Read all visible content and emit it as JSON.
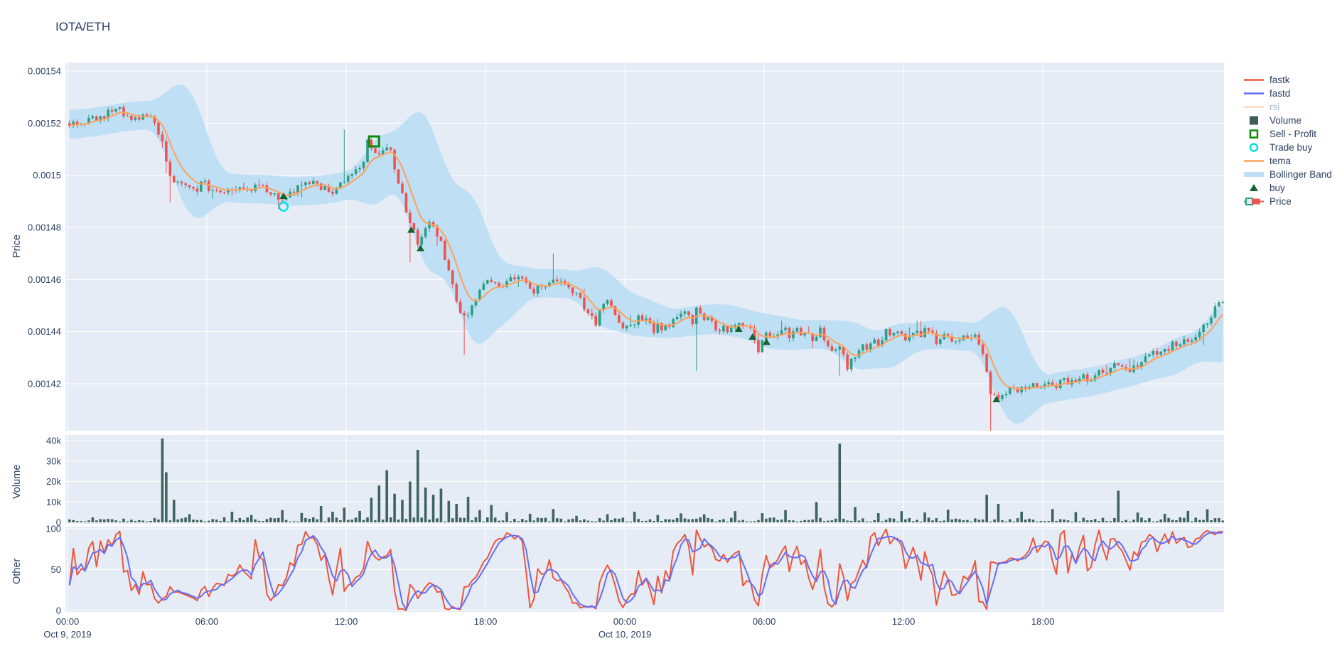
{
  "title": "IOTA/ETH",
  "colors": {
    "background": "#ffffff",
    "plot_bg": "#E5ECF6",
    "grid": "#ffffff",
    "text": "#2A3F5F",
    "candle_up": "#2D9E83",
    "candle_down": "#EF5350",
    "tema": "#FFA15A",
    "fastk": "#EF553B",
    "fastd": "#636EFA",
    "rsi": "#FFA15A",
    "bollinger": "#BEDFF4",
    "volume_bar": "#406362",
    "buy_marker": "#14652D",
    "trade_buy": "#00E0E6",
    "sell_profit": "#0E8A0E",
    "legend_faded_text": "#A9B6C9"
  },
  "axes": {
    "price": {
      "title": "Price",
      "ticks": [
        {
          "v": 0.00154,
          "label": "0.00154"
        },
        {
          "v": 0.00152,
          "label": "0.00152"
        },
        {
          "v": 0.0015,
          "label": "0.0015"
        },
        {
          "v": 0.00148,
          "label": "0.00148"
        },
        {
          "v": 0.00146,
          "label": "0.00146"
        },
        {
          "v": 0.00144,
          "label": "0.00144"
        },
        {
          "v": 0.00142,
          "label": "0.00142"
        }
      ]
    },
    "volume": {
      "title": "Volume",
      "ticks": [
        {
          "v": 40000,
          "label": "40k"
        },
        {
          "v": 30000,
          "label": "30k"
        },
        {
          "v": 20000,
          "label": "20k"
        },
        {
          "v": 10000,
          "label": "10k"
        },
        {
          "v": 0,
          "label": "0"
        }
      ]
    },
    "other": {
      "title": "Other",
      "ticks": [
        {
          "v": 100,
          "label": "100"
        },
        {
          "v": 50,
          "label": "50"
        },
        {
          "v": 0,
          "label": "0"
        }
      ]
    },
    "time": {
      "ticks": [
        {
          "t": 0,
          "label": "00:00",
          "sub": "Oct 9, 2019"
        },
        {
          "t": 6,
          "label": "06:00"
        },
        {
          "t": 12,
          "label": "12:00"
        },
        {
          "t": 18,
          "label": "18:00"
        },
        {
          "t": 24,
          "label": "00:00",
          "sub": "Oct 10, 2019"
        },
        {
          "t": 30,
          "label": "06:00"
        },
        {
          "t": 36,
          "label": "12:00"
        },
        {
          "t": 42,
          "label": "18:00"
        }
      ]
    }
  },
  "legend": {
    "items": [
      {
        "id": "fastk",
        "label": "fastk",
        "swatch": "line",
        "color": "#EF553B",
        "faded": false
      },
      {
        "id": "fastd",
        "label": "fastd",
        "swatch": "line",
        "color": "#636EFA",
        "faded": false
      },
      {
        "id": "rsi",
        "label": "rsi",
        "swatch": "line",
        "color": "#FFA15A",
        "faded": true
      },
      {
        "id": "volume",
        "label": "Volume",
        "swatch": "square-filled",
        "color": "#3E5C5C",
        "faded": false
      },
      {
        "id": "sell-profit",
        "label": "Sell - Profit",
        "swatch": "square-open",
        "color": "#0E8A0E",
        "faded": false
      },
      {
        "id": "trade-buy",
        "label": "Trade buy",
        "swatch": "circle-open",
        "color": "#00E0E6",
        "faded": false
      },
      {
        "id": "tema",
        "label": "tema",
        "swatch": "line",
        "color": "#FFA15A",
        "faded": false
      },
      {
        "id": "bollinger",
        "label": "Bollinger Band",
        "swatch": "band",
        "color": "#BEDFF4",
        "faded": false
      },
      {
        "id": "buy",
        "label": "buy",
        "swatch": "triangle",
        "color": "#14652D",
        "faded": false
      },
      {
        "id": "price",
        "label": "Price",
        "swatch": "candle",
        "color": "#2D9E83",
        "color2": "#EF5350",
        "faded": false
      }
    ]
  },
  "chart_data": {
    "type": "candlestick",
    "title": "IOTA/ETH",
    "x_axis": {
      "unit": "hours_from_Oct9_2019_00:00",
      "range": [
        0,
        49.8
      ],
      "tick_interval_hours": 6,
      "grid": true
    },
    "price_axis": {
      "range": [
        0.001402,
        0.0015433
      ],
      "grid": true
    },
    "volume_axis": {
      "range": [
        0,
        43000
      ],
      "grid": true
    },
    "other_axis": {
      "range": [
        0,
        105
      ],
      "grid": true
    },
    "legend_position": "right",
    "series": [
      {
        "name": "Price",
        "type": "candlestick",
        "subplot": "price"
      },
      {
        "name": "tema",
        "type": "line",
        "subplot": "price"
      },
      {
        "name": "Bollinger Band",
        "type": "band",
        "subplot": "price"
      },
      {
        "name": "buy",
        "type": "markers-triangle",
        "subplot": "price"
      },
      {
        "name": "Trade buy",
        "type": "markers-circle-open",
        "subplot": "price"
      },
      {
        "name": "Sell - Profit",
        "type": "markers-square-open",
        "subplot": "price"
      },
      {
        "name": "Volume",
        "type": "bar",
        "subplot": "volume"
      },
      {
        "name": "fastk",
        "type": "line",
        "subplot": "other"
      },
      {
        "name": "fastd",
        "type": "line",
        "subplot": "other"
      },
      {
        "name": "rsi",
        "type": "line",
        "subplot": "other",
        "visible": false
      }
    ],
    "price_keyframes": [
      [
        0,
        0.00152
      ],
      [
        0.8,
        0.001521
      ],
      [
        1.6,
        0.001524
      ],
      [
        2.3,
        0.001526
      ],
      [
        2.9,
        0.001521
      ],
      [
        3.4,
        0.001522
      ],
      [
        3.9,
        0.001521
      ],
      [
        4.15,
        0.00151
      ],
      [
        4.6,
        0.001497
      ],
      [
        5.2,
        0.001495
      ],
      [
        6.0,
        0.001496
      ],
      [
        6.6,
        0.001492
      ],
      [
        7.3,
        0.001495
      ],
      [
        8.0,
        0.001496
      ],
      [
        8.7,
        0.001494
      ],
      [
        9.3,
        0.001489
      ],
      [
        9.9,
        0.001494
      ],
      [
        10.6,
        0.001499
      ],
      [
        11.3,
        0.001493
      ],
      [
        11.9,
        0.001497
      ],
      [
        12.5,
        0.001502
      ],
      [
        13.2,
        0.001512
      ],
      [
        13.6,
        0.001507
      ],
      [
        13.9,
        0.001511
      ],
      [
        14.3,
        0.0015
      ],
      [
        14.8,
        0.001482
      ],
      [
        15.2,
        0.001473
      ],
      [
        15.7,
        0.001482
      ],
      [
        16.1,
        0.001477
      ],
      [
        16.6,
        0.00146
      ],
      [
        17.1,
        0.001444
      ],
      [
        17.6,
        0.001452
      ],
      [
        18.2,
        0.00146
      ],
      [
        18.9,
        0.001457
      ],
      [
        19.5,
        0.001462
      ],
      [
        20.2,
        0.001455
      ],
      [
        20.9,
        0.001461
      ],
      [
        21.5,
        0.00146
      ],
      [
        22.1,
        0.001452
      ],
      [
        22.7,
        0.001447
      ],
      [
        23.3,
        0.001451
      ],
      [
        24.0,
        0.001443
      ],
      [
        24.9,
        0.001445
      ],
      [
        25.7,
        0.001442
      ],
      [
        26.5,
        0.001446
      ],
      [
        27.3,
        0.001448
      ],
      [
        27.9,
        0.001442
      ],
      [
        28.5,
        0.00144
      ],
      [
        29.2,
        0.001443
      ],
      [
        29.8,
        0.001437
      ],
      [
        30.5,
        0.001439
      ],
      [
        31.2,
        0.001441
      ],
      [
        31.9,
        0.001438
      ],
      [
        32.6,
        0.001437
      ],
      [
        33.2,
        0.001432
      ],
      [
        33.8,
        0.001431
      ],
      [
        34.4,
        0.001434
      ],
      [
        35.1,
        0.001438
      ],
      [
        35.7,
        0.00144
      ],
      [
        36.3,
        0.001437
      ],
      [
        37.0,
        0.00144
      ],
      [
        37.6,
        0.001438
      ],
      [
        38.3,
        0.001437
      ],
      [
        38.9,
        0.001439
      ],
      [
        39.4,
        0.001436
      ],
      [
        39.8,
        0.001417
      ],
      [
        40.2,
        0.001413
      ],
      [
        40.7,
        0.001419
      ],
      [
        41.3,
        0.001418
      ],
      [
        42.0,
        0.001419
      ],
      [
        42.7,
        0.00142
      ],
      [
        43.4,
        0.001421
      ],
      [
        44.1,
        0.001423
      ],
      [
        44.8,
        0.001425
      ],
      [
        45.4,
        0.001427
      ],
      [
        45.9,
        0.001426
      ],
      [
        46.5,
        0.00143
      ],
      [
        47.1,
        0.001432
      ],
      [
        47.7,
        0.001435
      ],
      [
        48.3,
        0.001437
      ],
      [
        48.9,
        0.001441
      ],
      [
        49.4,
        0.001447
      ],
      [
        49.8,
        0.001452
      ]
    ],
    "volume_spikes": [
      [
        4.1,
        41000
      ],
      [
        4.4,
        24500
      ],
      [
        4.7,
        11000
      ],
      [
        5.3,
        4000
      ],
      [
        7.2,
        5200
      ],
      [
        8.0,
        3600
      ],
      [
        9.3,
        6000
      ],
      [
        10.1,
        4600
      ],
      [
        11.0,
        8000
      ],
      [
        11.5,
        5200
      ],
      [
        12.0,
        7200
      ],
      [
        12.6,
        5600
      ],
      [
        13.2,
        12000
      ],
      [
        13.5,
        18000
      ],
      [
        13.8,
        25500
      ],
      [
        14.2,
        14000
      ],
      [
        14.5,
        11000
      ],
      [
        14.8,
        20000
      ],
      [
        15.2,
        35500
      ],
      [
        15.5,
        17000
      ],
      [
        15.8,
        13500
      ],
      [
        16.2,
        16500
      ],
      [
        16.5,
        10500
      ],
      [
        16.9,
        9000
      ],
      [
        17.3,
        12500
      ],
      [
        17.8,
        6000
      ],
      [
        18.3,
        8500
      ],
      [
        19.0,
        5000
      ],
      [
        20.0,
        4200
      ],
      [
        21.0,
        6500
      ],
      [
        22.0,
        3200
      ],
      [
        23.4,
        4000
      ],
      [
        24.5,
        5200
      ],
      [
        25.5,
        3600
      ],
      [
        26.5,
        4400
      ],
      [
        27.5,
        3900
      ],
      [
        28.9,
        5500
      ],
      [
        30.0,
        4500
      ],
      [
        31.0,
        6000
      ],
      [
        32.3,
        10000
      ],
      [
        33.3,
        38500
      ],
      [
        34.0,
        7500
      ],
      [
        35.0,
        4500
      ],
      [
        36.0,
        5500
      ],
      [
        37.0,
        4800
      ],
      [
        38.0,
        6200
      ],
      [
        39.6,
        13500
      ],
      [
        40.1,
        9000
      ],
      [
        41.2,
        5200
      ],
      [
        42.5,
        6500
      ],
      [
        43.5,
        5000
      ],
      [
        45.3,
        15500
      ],
      [
        46.2,
        4800
      ],
      [
        47.3,
        4200
      ],
      [
        48.4,
        5600
      ],
      [
        49.2,
        6400
      ]
    ],
    "wick_events": [
      {
        "t": 4.5,
        "side": "low",
        "len": 1e-05
      },
      {
        "t": 12.0,
        "side": "high",
        "len": 2e-05
      },
      {
        "t": 14.9,
        "side": "low",
        "len": 1.5e-05
      },
      {
        "t": 17.1,
        "side": "low",
        "len": 1.5e-05
      },
      {
        "t": 21.0,
        "side": "high",
        "len": 1e-05
      },
      {
        "t": 27.2,
        "side": "low",
        "len": 1.8e-05
      },
      {
        "t": 33.3,
        "side": "low",
        "len": 1e-05
      },
      {
        "t": 39.9,
        "side": "low",
        "len": 3.5e-05
      }
    ],
    "markers": {
      "buy": [
        [
          9.3,
          0.001492
        ],
        [
          14.8,
          0.001479
        ],
        [
          15.2,
          0.001472
        ],
        [
          28.9,
          0.001441
        ],
        [
          29.5,
          0.001438
        ],
        [
          30.1,
          0.001436
        ],
        [
          40.0,
          0.001414
        ]
      ],
      "trade_buy": [
        [
          9.3,
          0.001488
        ]
      ],
      "sell_profit": [
        [
          13.2,
          0.001513
        ]
      ]
    },
    "generator": {
      "seed": 1337,
      "candle_minutes": 10,
      "hours": 49.8,
      "noise_amp": 1.8e-06,
      "boll_window": 14,
      "boll_mult": 2.2,
      "boll_min_half": 5.5e-06,
      "boll_smooth": 7,
      "stoch_period": 12,
      "stoch_smooth": 3,
      "tema_fast": 5,
      "tema_slow": 3,
      "volume_base_min": 200,
      "volume_base_rand": 2300
    }
  }
}
